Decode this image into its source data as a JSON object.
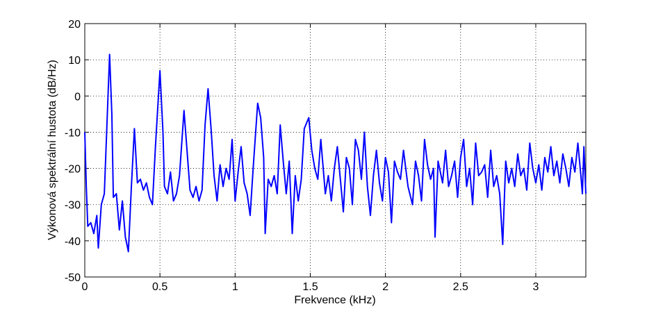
{
  "chart_data": {
    "type": "line",
    "x_label": "Frekvence (kHz)",
    "y_label": "Výkonová spektrální hustota (dB/Hz)",
    "xlim": [
      0,
      3.333
    ],
    "ylim": [
      -50,
      20
    ],
    "xticks": [
      0,
      0.5,
      1,
      1.5,
      2,
      2.5,
      3
    ],
    "yticks": [
      -50,
      -40,
      -30,
      -20,
      -10,
      0,
      10,
      20
    ],
    "grid": true,
    "x": [
      0,
      0.01,
      0.02,
      0.04,
      0.06,
      0.08,
      0.09,
      0.11,
      0.13,
      0.15,
      0.165,
      0.18,
      0.19,
      0.21,
      0.23,
      0.25,
      0.27,
      0.29,
      0.31,
      0.33,
      0.35,
      0.37,
      0.39,
      0.41,
      0.43,
      0.45,
      0.47,
      0.5,
      0.52,
      0.53,
      0.55,
      0.57,
      0.59,
      0.61,
      0.63,
      0.66,
      0.68,
      0.7,
      0.72,
      0.74,
      0.76,
      0.78,
      0.8,
      0.82,
      0.84,
      0.86,
      0.88,
      0.9,
      0.92,
      0.94,
      0.96,
      0.98,
      1,
      1.02,
      1.04,
      1.06,
      1.08,
      1.1,
      1.12,
      1.15,
      1.17,
      1.19,
      1.2,
      1.22,
      1.24,
      1.26,
      1.28,
      1.3,
      1.32,
      1.34,
      1.36,
      1.38,
      1.4,
      1.42,
      1.44,
      1.46,
      1.49,
      1.51,
      1.53,
      1.55,
      1.57,
      1.6,
      1.62,
      1.64,
      1.66,
      1.68,
      1.7,
      1.72,
      1.74,
      1.76,
      1.78,
      1.8,
      1.82,
      1.84,
      1.86,
      1.88,
      1.9,
      1.92,
      1.94,
      1.96,
      1.98,
      2,
      2.02,
      2.04,
      2.06,
      2.08,
      2.1,
      2.12,
      2.15,
      2.18,
      2.2,
      2.22,
      2.24,
      2.26,
      2.28,
      2.3,
      2.32,
      2.33,
      2.35,
      2.38,
      2.4,
      2.42,
      2.44,
      2.46,
      2.48,
      2.5,
      2.52,
      2.54,
      2.56,
      2.58,
      2.6,
      2.62,
      2.64,
      2.66,
      2.68,
      2.7,
      2.72,
      2.74,
      2.76,
      2.78,
      2.8,
      2.82,
      2.84,
      2.86,
      2.88,
      2.9,
      2.92,
      2.94,
      2.96,
      2.98,
      3,
      3.02,
      3.04,
      3.06,
      3.08,
      3.1,
      3.12,
      3.14,
      3.16,
      3.18,
      3.2,
      3.22,
      3.24,
      3.26,
      3.28,
      3.3,
      3.31,
      3.32,
      3.333
    ],
    "series": [
      {
        "color": "#0000ff",
        "values": [
          -10,
          -25,
          -36,
          -35,
          -38,
          -33,
          -42,
          -30,
          -27,
          -5,
          11.5,
          -5,
          -28,
          -27,
          -37,
          -29,
          -39,
          -43,
          -25,
          -9,
          -24,
          -23,
          -26,
          -24,
          -28,
          -30,
          -14,
          7,
          -10,
          -25,
          -27,
          -21,
          -29,
          -27,
          -22,
          -4,
          -15,
          -26,
          -28,
          -25,
          -29,
          -26,
          -8,
          2,
          -9,
          -22,
          -29,
          -19,
          -25,
          -20,
          -23,
          -12,
          -29,
          -21,
          -14,
          -24,
          -27,
          -33,
          -20,
          -2,
          -6,
          -17,
          -38,
          -23,
          -25,
          -22,
          -27,
          -8,
          -18,
          -27,
          -18,
          -38,
          -22,
          -29,
          -23,
          -9,
          -6,
          -15,
          -20,
          -23,
          -12,
          -27,
          -22,
          -29,
          -20,
          -14,
          -23,
          -32,
          -17,
          -20,
          -30,
          -12,
          -15,
          -23,
          -10,
          -25,
          -33,
          -22,
          -15,
          -24,
          -29,
          -17,
          -21,
          -35,
          -18,
          -21,
          -23,
          -15,
          -25,
          -30,
          -18,
          -22,
          -29,
          -12,
          -19,
          -23,
          -20,
          -39,
          -18,
          -24,
          -15,
          -25,
          -22,
          -18,
          -28,
          -17,
          -12,
          -25,
          -20,
          -30,
          -13,
          -22,
          -21,
          -19,
          -28,
          -15,
          -25,
          -22,
          -27,
          -41,
          -18,
          -24,
          -20,
          -25,
          -16,
          -22,
          -20,
          -26,
          -13,
          -20,
          -24,
          -19,
          -26,
          -17,
          -21,
          -14,
          -22,
          -18,
          -24,
          -16,
          -20,
          -25,
          -17,
          -21,
          -13,
          -22,
          -27,
          -14,
          -27
        ]
      }
    ]
  }
}
